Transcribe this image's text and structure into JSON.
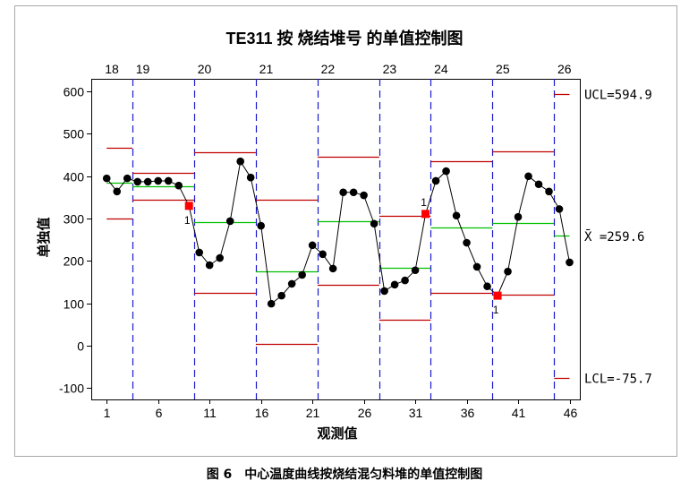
{
  "caption": "图 6　中心温度曲线按烧结混匀料堆的单值控制图",
  "chart_data": {
    "type": "line",
    "title": "TE311 按 烧结堆号 的单值控制图",
    "xlabel": "观测值",
    "ylabel": "单独值",
    "xlim": [
      -0.5,
      47
    ],
    "ylim": [
      -127,
      630
    ],
    "grid": false,
    "xticks": [
      1,
      6,
      11,
      16,
      21,
      26,
      31,
      36,
      41,
      46
    ],
    "yticks": [
      600,
      500,
      400,
      300,
      200,
      100,
      0,
      -100
    ],
    "x": [
      1,
      2,
      3,
      4,
      5,
      6,
      7,
      8,
      9,
      10,
      11,
      12,
      13,
      14,
      15,
      16,
      17,
      18,
      19,
      20,
      21,
      22,
      23,
      24,
      25,
      26,
      27,
      28,
      29,
      30,
      31,
      32,
      33,
      34,
      35,
      36,
      37,
      38,
      39,
      40,
      41,
      42,
      43,
      44,
      45,
      46
    ],
    "values": [
      395,
      364,
      395,
      387,
      387,
      389,
      389,
      378,
      330,
      220,
      190,
      207,
      294,
      435,
      397,
      283,
      99,
      118,
      146,
      167,
      237,
      216,
      182,
      362,
      362,
      355,
      288,
      129,
      144,
      154,
      178,
      311,
      389,
      412,
      307,
      243,
      186,
      140,
      118,
      175,
      304,
      400,
      381,
      364,
      322.6,
      196.6
    ],
    "stages": [
      {
        "name": "18",
        "start": 1,
        "end": 3,
        "ucl": 468,
        "cl": 385,
        "lcl": 301
      },
      {
        "name": "19",
        "start": 4,
        "end": 9,
        "ucl": 408,
        "cl": 377,
        "lcl": 345
      },
      {
        "name": "20",
        "start": 10,
        "end": 15,
        "ucl": 457,
        "cl": 291,
        "lcl": 125
      },
      {
        "name": "21",
        "start": 16,
        "end": 21,
        "ucl": 345,
        "cl": 175,
        "lcl": 5
      },
      {
        "name": "22",
        "start": 22,
        "end": 27,
        "ucl": 446,
        "cl": 294,
        "lcl": 143
      },
      {
        "name": "23",
        "start": 28,
        "end": 32,
        "ucl": 306,
        "cl": 184,
        "lcl": 62
      },
      {
        "name": "24",
        "start": 33,
        "end": 38,
        "ucl": 435,
        "cl": 280,
        "lcl": 125
      },
      {
        "name": "25",
        "start": 39,
        "end": 44,
        "ucl": 459,
        "cl": 290,
        "lcl": 121
      },
      {
        "name": "26",
        "start": 45,
        "end": 46,
        "ucl": 594.9,
        "cl": 259.6,
        "lcl": -75.7
      }
    ],
    "limit_labels": {
      "ucl": "UCL=594.9",
      "cl": "X̄ =259.6",
      "lcl": "LCL=-75.7"
    },
    "out_of_control": [
      {
        "x": 9,
        "label": "1"
      },
      {
        "x": 32,
        "label": "1"
      },
      {
        "x": 39,
        "label": "1"
      }
    ],
    "colors": {
      "points": "#000000",
      "series_line": "#000000",
      "out_of_control": "#ff0000",
      "control_limits": "#c00000",
      "center_line": "#00c000",
      "stage_divider": "#1a1acc"
    }
  }
}
